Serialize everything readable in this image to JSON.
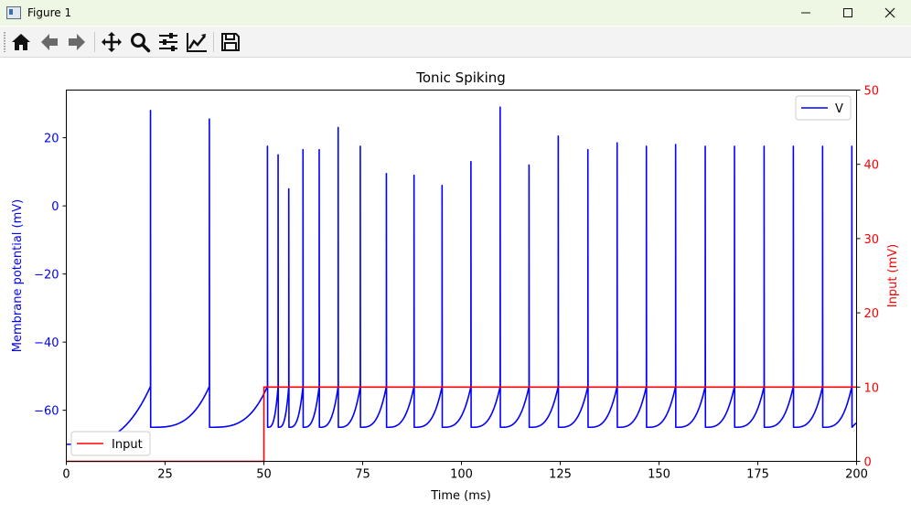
{
  "window": {
    "title": "Figure 1",
    "controls": {
      "minimize": "—",
      "maximize": "☐",
      "close": "✕"
    }
  },
  "toolbar": {
    "tools": [
      "home-icon",
      "back-arrow-icon",
      "forward-arrow-icon",
      "pan-icon",
      "zoom-icon",
      "configure-subplots-icon",
      "edit-axis-icon",
      "save-icon"
    ]
  },
  "chart_data": {
    "type": "line",
    "title": "Tonic Spiking",
    "xlabel": "Time (ms)",
    "ylabel_left": "Membrane potential (mV)",
    "ylabel_right": "Input (mV)",
    "xlim": [
      0,
      200
    ],
    "ylim_left": [
      -75,
      34
    ],
    "ylim_right": [
      0,
      50
    ],
    "x_ticks": [
      0,
      25,
      50,
      75,
      100,
      125,
      150,
      175,
      200
    ],
    "y_left_ticks": [
      20,
      0,
      -20,
      -40,
      -60
    ],
    "y_left_tick_labels": [
      "20",
      "0",
      "−20",
      "−40",
      "−60"
    ],
    "y_right_ticks": [
      0,
      10,
      20,
      30,
      40,
      50
    ],
    "grid": false,
    "colors": {
      "v": "#0000ff",
      "input": "#ff0000",
      "left_axis": "#0000ff",
      "right_axis": "#ff0000"
    },
    "series": [
      {
        "name": "V",
        "axis": "left",
        "legend_position": "upper right",
        "resting_potential": -70,
        "reset_potential": -65,
        "spike_times": [
          21.3,
          36.2,
          50.9,
          53.6,
          56.3,
          59.9,
          64.0,
          68.8,
          74.4,
          81.0,
          88.0,
          95.1,
          102.4,
          109.8,
          117.1,
          124.5,
          132.0,
          139.4,
          146.8,
          154.2,
          161.7,
          169.1,
          176.6,
          184.0,
          191.4,
          198.8
        ],
        "spike_peaks": [
          28,
          25.5,
          17.5,
          15,
          5,
          16.5,
          16.5,
          23,
          17.5,
          9.5,
          9,
          6,
          13,
          29,
          12,
          20.5,
          16.5,
          18.5,
          17.5,
          18,
          17.5,
          17.5,
          17.5,
          17.5,
          17.5,
          17.5
        ]
      },
      {
        "name": "Input",
        "axis": "right",
        "legend_position": "lower left",
        "x": [
          0,
          50,
          50,
          200
        ],
        "y": [
          0,
          0,
          10,
          10
        ]
      }
    ]
  }
}
